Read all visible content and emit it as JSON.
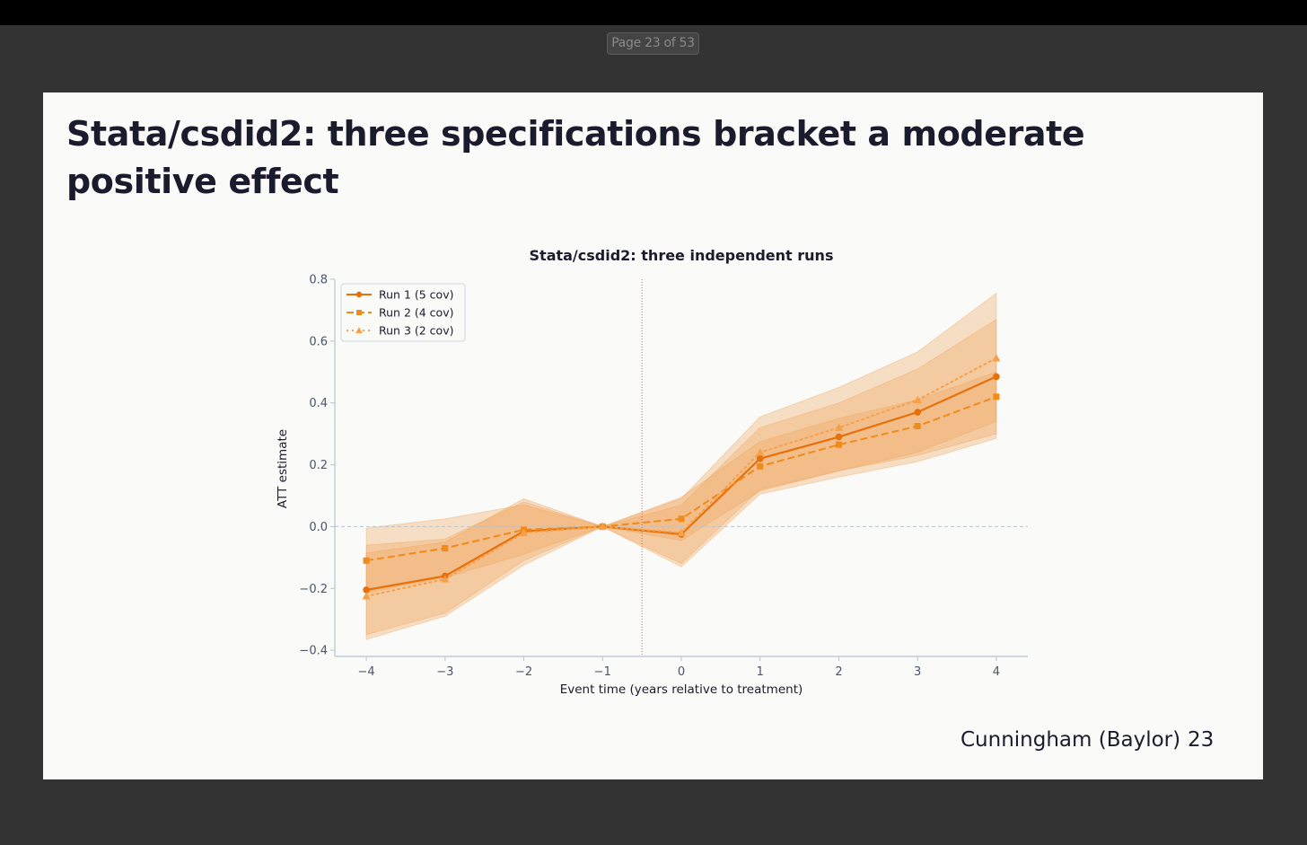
{
  "viewer": {
    "page_indicator": "Page 23 of 53"
  },
  "slide": {
    "title": "Stata/csdid2: three specifications bracket a moderate positive effect",
    "footer_author": "Cunningham (Baylor)",
    "footer_page": "23"
  },
  "colors": {
    "run1": "#e6700a",
    "run2": "#f08a1a",
    "run3": "#f5a04a",
    "band": "#f0a050",
    "treatment_line": "#e05a6a",
    "zero_line": "#b8c4d0",
    "axis": "#b8c4d0"
  },
  "chart_data": {
    "type": "line",
    "title": "Stata/csdid2: three independent runs",
    "xlabel": "Event time (years relative to treatment)",
    "ylabel": "ATT estimate",
    "x": [
      -4,
      -3,
      -2,
      -1,
      0,
      1,
      2,
      3,
      4
    ],
    "x_tick_labels": [
      "−4",
      "−3",
      "−2",
      "−1",
      "0",
      "1",
      "2",
      "3",
      "4"
    ],
    "xlim": [
      -4.4,
      4.4
    ],
    "ylim": [
      -0.42,
      0.8
    ],
    "y_ticks": [
      -0.4,
      -0.2,
      0.0,
      0.2,
      0.4,
      0.6,
      0.8
    ],
    "y_tick_labels": [
      "−0.4",
      "−0.2",
      "0.0",
      "0.2",
      "0.4",
      "0.6",
      "0.8"
    ],
    "treatment_line_x": -0.5,
    "legend_position": "upper-left",
    "series": [
      {
        "name": "Run 1 (5 cov)",
        "marker": "circle",
        "linestyle": "solid",
        "values": [
          -0.205,
          -0.16,
          -0.015,
          0.0,
          -0.025,
          0.22,
          0.29,
          0.37,
          0.485
        ],
        "ci_low": [
          -0.35,
          -0.28,
          -0.11,
          0.0,
          -0.12,
          0.12,
          0.18,
          0.23,
          0.3
        ],
        "ci_high": [
          -0.06,
          -0.04,
          0.08,
          0.0,
          0.07,
          0.32,
          0.4,
          0.51,
          0.67
        ]
      },
      {
        "name": "Run 2 (4 cov)",
        "marker": "square",
        "linestyle": "dashed",
        "values": [
          -0.11,
          -0.07,
          -0.01,
          0.0,
          0.025,
          0.195,
          0.265,
          0.325,
          0.42
        ],
        "ci_low": [
          -0.215,
          -0.165,
          -0.09,
          0.0,
          -0.045,
          0.115,
          0.18,
          0.24,
          0.34
        ],
        "ci_high": [
          -0.005,
          0.025,
          0.07,
          0.0,
          0.095,
          0.275,
          0.35,
          0.41,
          0.5
        ]
      },
      {
        "name": "Run 3 (2 cov)",
        "marker": "triangle",
        "linestyle": "dotted",
        "values": [
          -0.225,
          -0.17,
          -0.02,
          0.0,
          -0.02,
          0.24,
          0.32,
          0.41,
          0.545
        ],
        "ci_low": [
          -0.365,
          -0.29,
          -0.125,
          0.0,
          -0.13,
          0.105,
          0.16,
          0.21,
          0.285
        ],
        "ci_high": [
          -0.085,
          -0.05,
          0.09,
          0.0,
          0.09,
          0.355,
          0.45,
          0.565,
          0.755
        ]
      }
    ]
  }
}
